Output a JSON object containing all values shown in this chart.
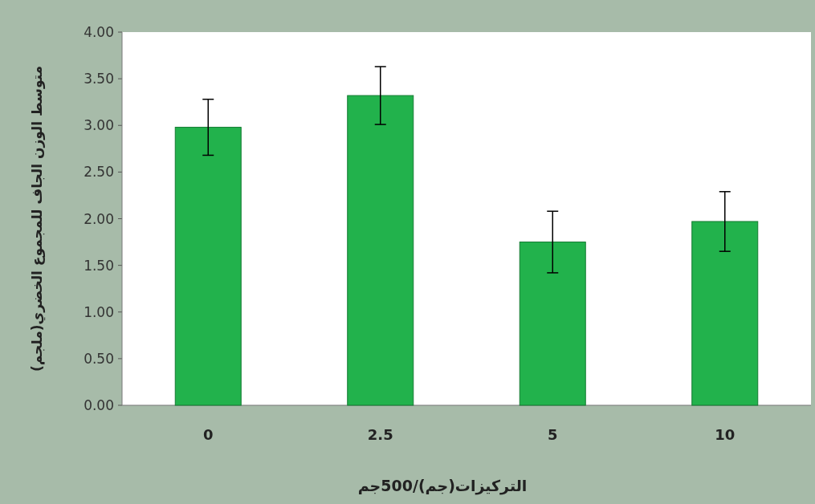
{
  "chart_data": {
    "type": "bar",
    "xlabel": "التركيزات(جم)/500جم",
    "ylabel": "متوسط الوزن الجاف للمجموع الخضري(ملجم)",
    "categories": [
      "0",
      "2.5",
      "5",
      "10"
    ],
    "values": [
      2.98,
      3.32,
      1.75,
      1.97
    ],
    "errors": [
      0.3,
      0.31,
      0.33,
      0.32
    ],
    "color": "#22b24c",
    "ylim": [
      0,
      4
    ],
    "yticks": [
      {
        "value": 0,
        "label": "0.00"
      },
      {
        "value": 0.5,
        "label": "0.50"
      },
      {
        "value": 1,
        "label": "1.00"
      },
      {
        "value": 1.5,
        "label": "1.50"
      },
      {
        "value": 2,
        "label": "2.00"
      },
      {
        "value": 2.5,
        "label": "2.50"
      },
      {
        "value": 3,
        "label": "3.00"
      },
      {
        "value": 3.5,
        "label": "3.50"
      },
      {
        "value": 4,
        "label": "4.00"
      }
    ],
    "grid": false
  }
}
